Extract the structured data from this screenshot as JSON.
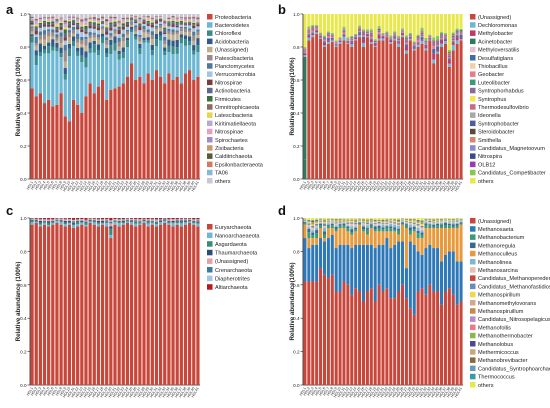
{
  "chart_data": [
    {
      "panel": "a",
      "type": "bar",
      "stacked": true,
      "ylabel": "Relative abundance (100%)",
      "ylim": [
        0,
        1
      ],
      "yticks": [
        "0.0",
        "0.2",
        "0.4",
        "0.6",
        "0.8",
        "1.0"
      ],
      "categories": [
        "HDL1",
        "HDL2",
        "HDL3",
        "HDL4",
        "HDL5",
        "HDL6",
        "HDL7",
        "HDL8",
        "HDL9",
        "HDL10",
        "HDL11",
        "HDL12",
        "HDL13",
        "HDL14",
        "HDL15",
        "HDL16",
        "HDL17",
        "HDL18",
        "HDL19",
        "HDL20",
        "HDL21",
        "HDL22",
        "HDL23",
        "HDL24",
        "HDL25",
        "HDL26",
        "HDL27",
        "HDL28",
        "HDL29",
        "HDL30",
        "HDL31",
        "HDL32",
        "HDL33",
        "HDL34",
        "HDL35",
        "HDL36",
        "HDL37",
        "HDL38",
        "HDL39",
        "HDL40",
        "HDL41"
      ],
      "base_values": [
        0.55,
        0.5,
        0.52,
        0.46,
        0.48,
        0.44,
        0.45,
        0.52,
        0.38,
        0.35,
        0.48,
        0.45,
        0.4,
        0.5,
        0.58,
        0.52,
        0.56,
        0.6,
        0.48,
        0.54,
        0.55,
        0.56,
        0.58,
        0.62,
        0.7,
        0.6,
        0.62,
        0.58,
        0.64,
        0.6,
        0.66,
        0.62,
        0.58,
        0.64,
        0.6,
        0.62,
        0.58,
        0.64,
        0.66,
        0.6,
        0.62
      ],
      "series": [
        {
          "name": "Proteobacteria",
          "color": "#c8473a"
        },
        {
          "name": "Bacteroidetes",
          "color": "#6cb8d4"
        },
        {
          "name": "Chloroflexi",
          "color": "#3c8a8a"
        },
        {
          "name": "Acidobacteria",
          "color": "#2e5c8a"
        },
        {
          "name": "(Unassigned)",
          "color": "#bfae8c"
        },
        {
          "name": "Patescibacteria",
          "color": "#9b8a8a"
        },
        {
          "name": "Planctomycetes",
          "color": "#4d7a9c"
        },
        {
          "name": "Verrucomicrobia",
          "color": "#a3c4e3"
        },
        {
          "name": "Nitrospirae",
          "color": "#7a3c3c"
        },
        {
          "name": "Actinobacteria",
          "color": "#5b6a8a"
        },
        {
          "name": "Firmicutes",
          "color": "#3d6e3d"
        },
        {
          "name": "Omnitrophicaeota",
          "color": "#8a6a5a"
        },
        {
          "name": "Latescibacteria",
          "color": "#e8d44d"
        },
        {
          "name": "Kiritimatiellaeota",
          "color": "#b8a8d4"
        },
        {
          "name": "Nitrospinae",
          "color": "#e8a0c0"
        },
        {
          "name": "Spirochaetes",
          "color": "#a08cc8"
        },
        {
          "name": "Zixibacteria",
          "color": "#c89a6a"
        },
        {
          "name": "Calditrichaeota",
          "color": "#5a5a3a"
        },
        {
          "name": "Epsilonbacteraeota",
          "color": "#d47a5a"
        },
        {
          "name": "TA06",
          "color": "#8ab8d4"
        },
        {
          "name": "others",
          "color": "#c8c8d4"
        }
      ]
    },
    {
      "panel": "b",
      "type": "bar",
      "stacked": true,
      "ylabel": "Relative abundance(100%)",
      "ylim": [
        0,
        1
      ],
      "yticks": [
        "0.0",
        "0.2",
        "0.4",
        "0.6",
        "0.8",
        "1.0"
      ],
      "base_values": [
        0.12,
        0.84,
        0.86,
        0.88,
        0.85,
        0.8,
        0.82,
        0.83,
        0.8,
        0.82,
        0.84,
        0.82,
        0.8,
        0.84,
        0.86,
        0.8,
        0.86,
        0.82,
        0.8,
        0.84,
        0.84,
        0.86,
        0.82,
        0.84,
        0.8,
        0.86,
        0.76,
        0.84,
        0.78,
        0.8,
        0.82,
        0.78,
        0.84,
        0.7,
        0.76,
        0.8,
        0.82,
        0.68,
        0.78,
        0.82,
        0.84
      ],
      "series": [
        {
          "name": "(Unassigned)",
          "color": "#c8473a"
        },
        {
          "name": "Dechloromonas",
          "color": "#6cb8d4"
        },
        {
          "name": "Methylobacter",
          "color": "#c0396a"
        },
        {
          "name": "Acinetobacter",
          "color": "#2e7a5c"
        },
        {
          "name": "Methyloversatilis",
          "color": "#e8c0d0"
        },
        {
          "name": "Desulfatiglans",
          "color": "#3c6ea8"
        },
        {
          "name": "Thiobacillus",
          "color": "#f0d0a8"
        },
        {
          "name": "Geobacter",
          "color": "#e87a8a"
        },
        {
          "name": "Luteolibacter",
          "color": "#3a9a7a"
        },
        {
          "name": "Syntrophorhabdus",
          "color": "#8a6a9a"
        },
        {
          "name": "Syntrophus",
          "color": "#f0e84d"
        },
        {
          "name": "Thermodesulfovibrio",
          "color": "#c86a8a"
        },
        {
          "name": "Ideonella",
          "color": "#a8a8a8"
        },
        {
          "name": "Syntrophobacter",
          "color": "#4d5c9c"
        },
        {
          "name": "Steroidobacter",
          "color": "#5a4a3a"
        },
        {
          "name": "Smithella",
          "color": "#d48a6a"
        },
        {
          "name": "Candidatus_Magnetoovum",
          "color": "#8a8ac8"
        },
        {
          "name": "Nitrospira",
          "color": "#3c4a8a"
        },
        {
          "name": "OLB12",
          "color": "#9a3ab8"
        },
        {
          "name": "Candidatus_Competibacter",
          "color": "#8ac84d"
        },
        {
          "name": "others",
          "color": "#e8e84d"
        }
      ]
    },
    {
      "panel": "c",
      "type": "bar",
      "stacked": true,
      "ylabel": "Relative abundance (100%)",
      "ylim": [
        0,
        1
      ],
      "yticks": [
        "0.0",
        "0.2",
        "0.4",
        "0.6",
        "0.8",
        "1.0"
      ],
      "base_values": [
        0.96,
        0.97,
        0.95,
        0.96,
        0.95,
        0.96,
        0.97,
        0.96,
        0.95,
        0.96,
        0.94,
        0.95,
        0.96,
        0.95,
        0.97,
        0.96,
        0.95,
        0.96,
        0.95,
        0.88,
        0.96,
        0.95,
        0.96,
        0.97,
        0.96,
        0.95,
        0.96,
        0.97,
        0.95,
        0.96,
        0.95,
        0.96,
        0.97,
        0.96,
        0.95,
        0.96,
        0.95,
        0.96,
        0.97,
        0.96,
        0.95
      ],
      "series": [
        {
          "name": "Euryarchaeota",
          "color": "#c8473a"
        },
        {
          "name": "Nanoarchaeaeota",
          "color": "#6cb8d4"
        },
        {
          "name": "Asgardaeota",
          "color": "#3c8a7a"
        },
        {
          "name": "Thaumarchaeota",
          "color": "#2e4c7a"
        },
        {
          "name": "(Unassigned)",
          "color": "#e8a0a8"
        },
        {
          "name": "Crenarchaeota",
          "color": "#3c7a9c"
        },
        {
          "name": "Diapherotrites",
          "color": "#a3c4e3"
        },
        {
          "name": "Altiarchaeota",
          "color": "#b81818"
        }
      ]
    },
    {
      "panel": "d",
      "type": "bar",
      "stacked": true,
      "ylabel": "Relative abundance(100%)",
      "ylim": [
        0,
        1
      ],
      "yticks": [
        "0.0",
        "0.2",
        "0.4",
        "0.6",
        "0.8",
        "1.0"
      ],
      "base_values": [
        0.62,
        0.62,
        0.62,
        0.62,
        0.7,
        0.66,
        0.64,
        0.66,
        0.56,
        0.56,
        0.62,
        0.6,
        0.54,
        0.58,
        0.56,
        0.5,
        0.56,
        0.58,
        0.5,
        0.6,
        0.56,
        0.58,
        0.52,
        0.52,
        0.56,
        0.6,
        0.52,
        0.46,
        0.42,
        0.56,
        0.58,
        0.54,
        0.6,
        0.56,
        0.56,
        0.48,
        0.56,
        0.58,
        0.54,
        0.48,
        0.5
      ],
      "second_values": [
        0.26,
        0.2,
        0.22,
        0.22,
        0.18,
        0.2,
        0.24,
        0.24,
        0.26,
        0.28,
        0.22,
        0.24,
        0.28,
        0.26,
        0.28,
        0.34,
        0.28,
        0.26,
        0.32,
        0.24,
        0.28,
        0.3,
        0.3,
        0.32,
        0.3,
        0.26,
        0.18,
        0.4,
        0.42,
        0.24,
        0.2,
        0.28,
        0.24,
        0.26,
        0.26,
        0.26,
        0.22,
        0.22,
        0.26,
        0.26,
        0.24
      ],
      "third_values": [
        0.08,
        0.06,
        0.04,
        0.04,
        0.06,
        0.02,
        0.06,
        0.04,
        0.1,
        0.1,
        0.1,
        0.08,
        0.08,
        0.08,
        0.12,
        0.08,
        0.06,
        0.1,
        0.1,
        0.08,
        0.08,
        0.04,
        0.1,
        0.08,
        0.04,
        0.1,
        0.24,
        0.04,
        0.08,
        0.08,
        0.1,
        0.12,
        0.1,
        0.12,
        0.12,
        0.2,
        0.16,
        0.14,
        0.14,
        0.2,
        0.22
      ],
      "series": [
        {
          "name": "(Unassigned)",
          "color": "#c8473a"
        },
        {
          "name": "Methanosaeta",
          "color": "#2e78b8"
        },
        {
          "name": "Methanobacterium",
          "color": "#3c9a7a"
        },
        {
          "name": "Methanoregula",
          "color": "#3a6a8a"
        },
        {
          "name": "Methanoculleus",
          "color": "#e89a3a"
        },
        {
          "name": "Methanolinea",
          "color": "#7ab8d4"
        },
        {
          "name": "Methanosarcina",
          "color": "#e8c0b0"
        },
        {
          "name": "Candidatus_Methanoperedens",
          "color": "#c8473a"
        },
        {
          "name": "Candidatus_Methanofastidiosum",
          "color": "#6a8ab8"
        },
        {
          "name": "Methanospirillum",
          "color": "#f0d84d"
        },
        {
          "name": "Methanomethylovorans",
          "color": "#d4a88a"
        },
        {
          "name": "Methanospiruillum",
          "color": "#c88a4a"
        },
        {
          "name": "Candidatus_Nitrosopelagicus",
          "color": "#b88ac8"
        },
        {
          "name": "Methanofollis",
          "color": "#e87a8a"
        },
        {
          "name": "Methanothermobacter",
          "color": "#8ab84d"
        },
        {
          "name": "Methanolobus",
          "color": "#4d4a8a"
        },
        {
          "name": "Methermicoccus",
          "color": "#c8a87a"
        },
        {
          "name": "Methanobrevibacter",
          "color": "#8a6a3a"
        },
        {
          "name": "Candidatus_Syntrophoarchaeum",
          "color": "#6a9ab8"
        },
        {
          "name": "Thermococcus",
          "color": "#3a9aa8"
        },
        {
          "name": "others",
          "color": "#e8e84d"
        }
      ]
    }
  ],
  "panel_letters": [
    "a",
    "b",
    "c",
    "d"
  ]
}
